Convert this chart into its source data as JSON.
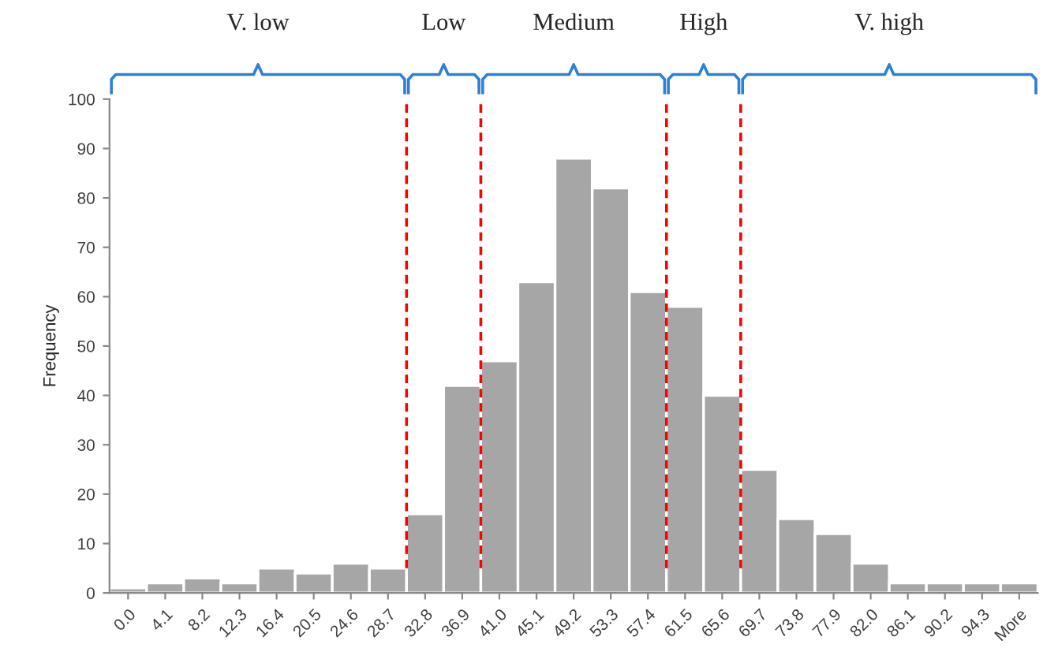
{
  "chart_data": {
    "type": "bar",
    "ylabel": "Frequency",
    "categories": [
      "0.0",
      "4.1",
      "8.2",
      "12.3",
      "16.4",
      "20.5",
      "24.6",
      "28.7",
      "32.8",
      "36.9",
      "41.0",
      "45.1",
      "49.2",
      "53.3",
      "57.4",
      "61.5",
      "65.6",
      "69.7",
      "73.8",
      "77.9",
      "82.0",
      "86.1",
      "90.2",
      "94.3",
      "More"
    ],
    "values": [
      1,
      2,
      3,
      2,
      5,
      4,
      6,
      5,
      16,
      42,
      47,
      63,
      88,
      82,
      61,
      58,
      40,
      25,
      15,
      12,
      6,
      2,
      2,
      2,
      2
    ],
    "color": "#a6a6a6",
    "ylim": [
      0,
      100
    ],
    "yticks": [
      0,
      10,
      20,
      30,
      40,
      50,
      60,
      70,
      80,
      90,
      100
    ],
    "grid": false,
    "annotations": [
      "V. low",
      "Low",
      "Medium",
      "High",
      "V. high"
    ]
  }
}
